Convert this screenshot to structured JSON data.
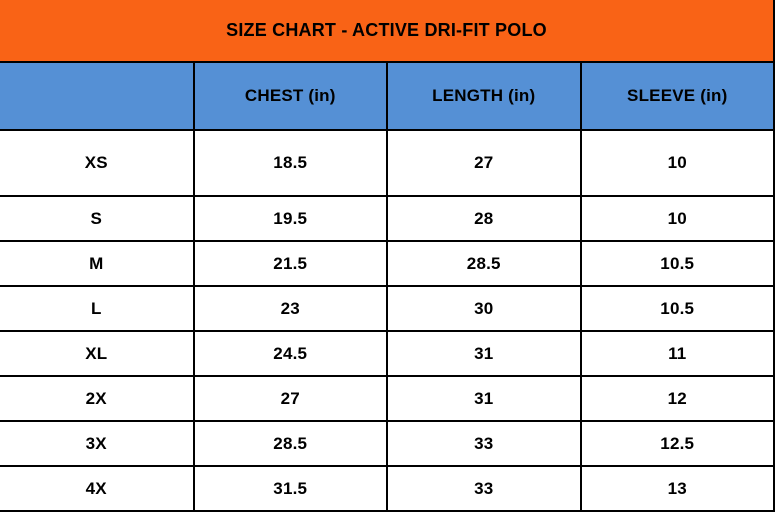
{
  "title": "SIZE CHART - ACTIVE DRI-FIT POLO",
  "columns": {
    "size": "",
    "chest": "CHEST (in)",
    "length": "LENGTH (in)",
    "sleeve": "SLEEVE (in)"
  },
  "rows": [
    {
      "size": "XS",
      "chest": "18.5",
      "length": "27",
      "sleeve": "10"
    },
    {
      "size": "S",
      "chest": "19.5",
      "length": "28",
      "sleeve": "10"
    },
    {
      "size": "M",
      "chest": "21.5",
      "length": "28.5",
      "sleeve": "10.5"
    },
    {
      "size": "L",
      "chest": "23",
      "length": "30",
      "sleeve": "10.5"
    },
    {
      "size": "XL",
      "chest": "24.5",
      "length": "31",
      "sleeve": "11"
    },
    {
      "size": "2X",
      "chest": "27",
      "length": "31",
      "sleeve": "12"
    },
    {
      "size": "3X",
      "chest": "28.5",
      "length": "33",
      "sleeve": "12.5"
    },
    {
      "size": "4X",
      "chest": "31.5",
      "length": "33",
      "sleeve": "13"
    }
  ],
  "colors": {
    "banner_orange": "#F96316",
    "header_blue": "#5590D5",
    "border_black": "#000000",
    "text_black": "#000000",
    "background_white": "#FFFFFF"
  }
}
